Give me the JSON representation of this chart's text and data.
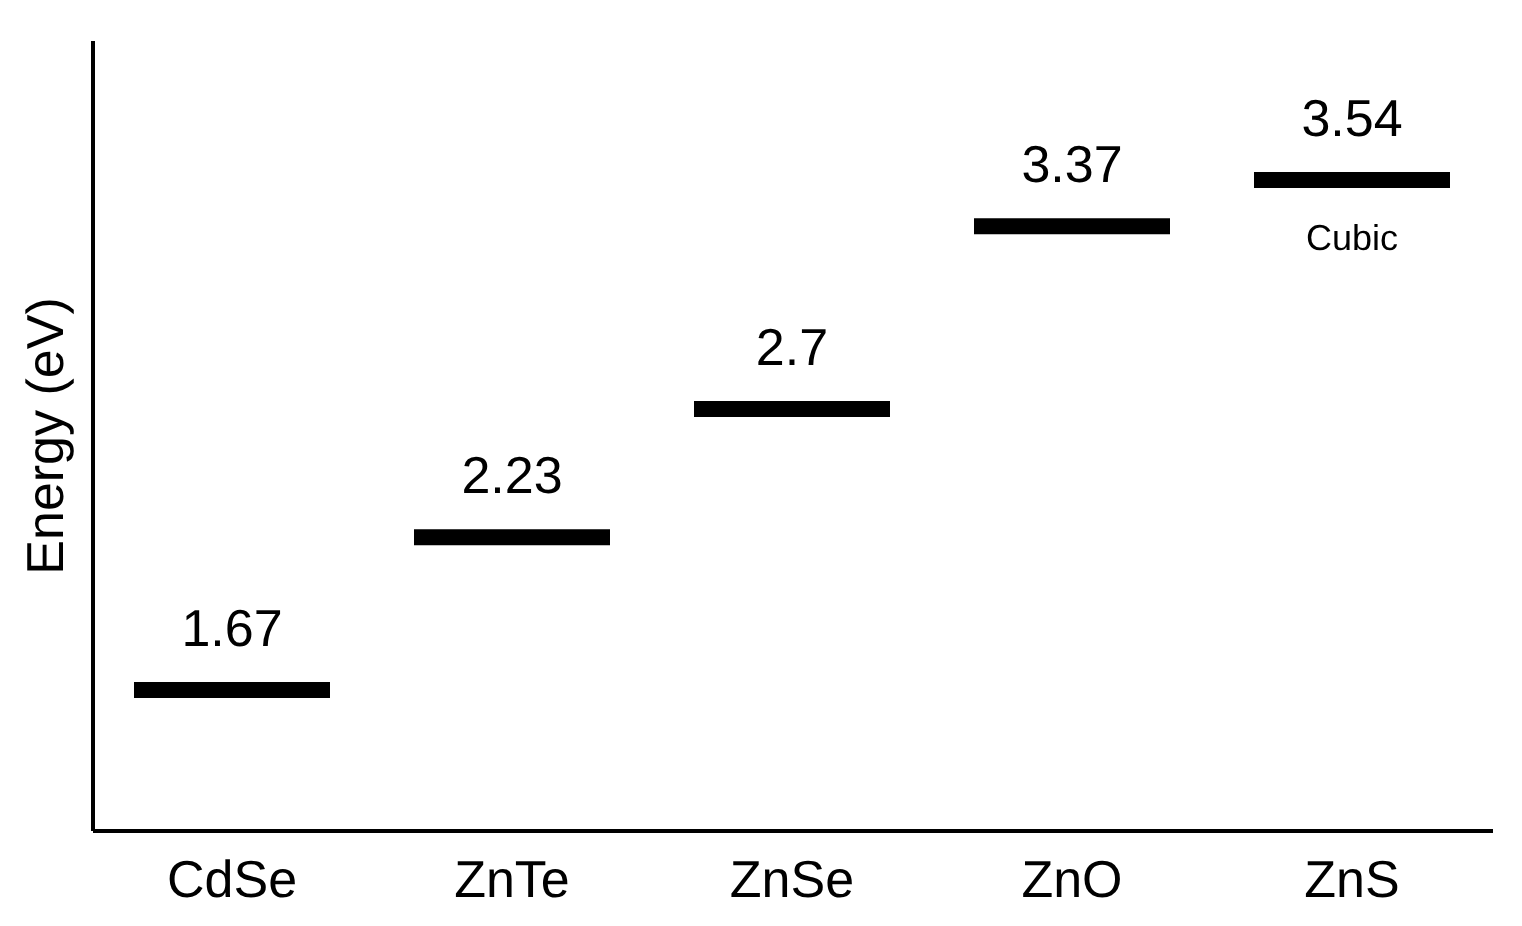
{
  "chart_data": {
    "type": "other",
    "ylabel": "Energy (eV)",
    "categories": [
      "CdSe",
      "ZnTe",
      "ZnSe",
      "ZnO",
      "ZnS"
    ],
    "values": [
      1.67,
      2.23,
      2.7,
      3.37,
      3.54
    ],
    "color": "#000000",
    "data_labels": true,
    "annotations": [
      {
        "text": "Cubic",
        "x": "ZnS"
      }
    ]
  }
}
